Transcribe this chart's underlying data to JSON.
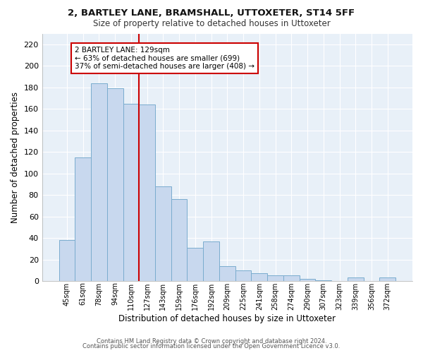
{
  "title": "2, BARTLEY LANE, BRAMSHALL, UTTOXETER, ST14 5FF",
  "subtitle": "Size of property relative to detached houses in Uttoxeter",
  "xlabel": "Distribution of detached houses by size in Uttoxeter",
  "ylabel": "Number of detached properties",
  "categories": [
    "45sqm",
    "61sqm",
    "78sqm",
    "94sqm",
    "110sqm",
    "127sqm",
    "143sqm",
    "159sqm",
    "176sqm",
    "192sqm",
    "209sqm",
    "225sqm",
    "241sqm",
    "258sqm",
    "274sqm",
    "290sqm",
    "307sqm",
    "323sqm",
    "339sqm",
    "356sqm",
    "372sqm"
  ],
  "values": [
    38,
    115,
    184,
    179,
    165,
    164,
    88,
    76,
    31,
    37,
    14,
    10,
    7,
    5,
    5,
    2,
    1,
    0,
    3,
    0,
    3
  ],
  "bar_color": "#c8d8ee",
  "bar_edge_color": "#7aacce",
  "highlight_index": 5,
  "highlight_line_color": "#cc0000",
  "ylim": [
    0,
    230
  ],
  "yticks": [
    0,
    20,
    40,
    60,
    80,
    100,
    120,
    140,
    160,
    180,
    200,
    220
  ],
  "annotation_title": "2 BARTLEY LANE: 129sqm",
  "annotation_line1": "← 63% of detached houses are smaller (699)",
  "annotation_line2": "37% of semi-detached houses are larger (408) →",
  "annotation_box_color": "#ffffff",
  "annotation_box_edge": "#cc0000",
  "footer1": "Contains HM Land Registry data © Crown copyright and database right 2024.",
  "footer2": "Contains public sector information licensed under the Open Government Licence v3.0.",
  "background_color": "#ffffff",
  "plot_bg_color": "#e8f0f8",
  "grid_color": "#ffffff"
}
